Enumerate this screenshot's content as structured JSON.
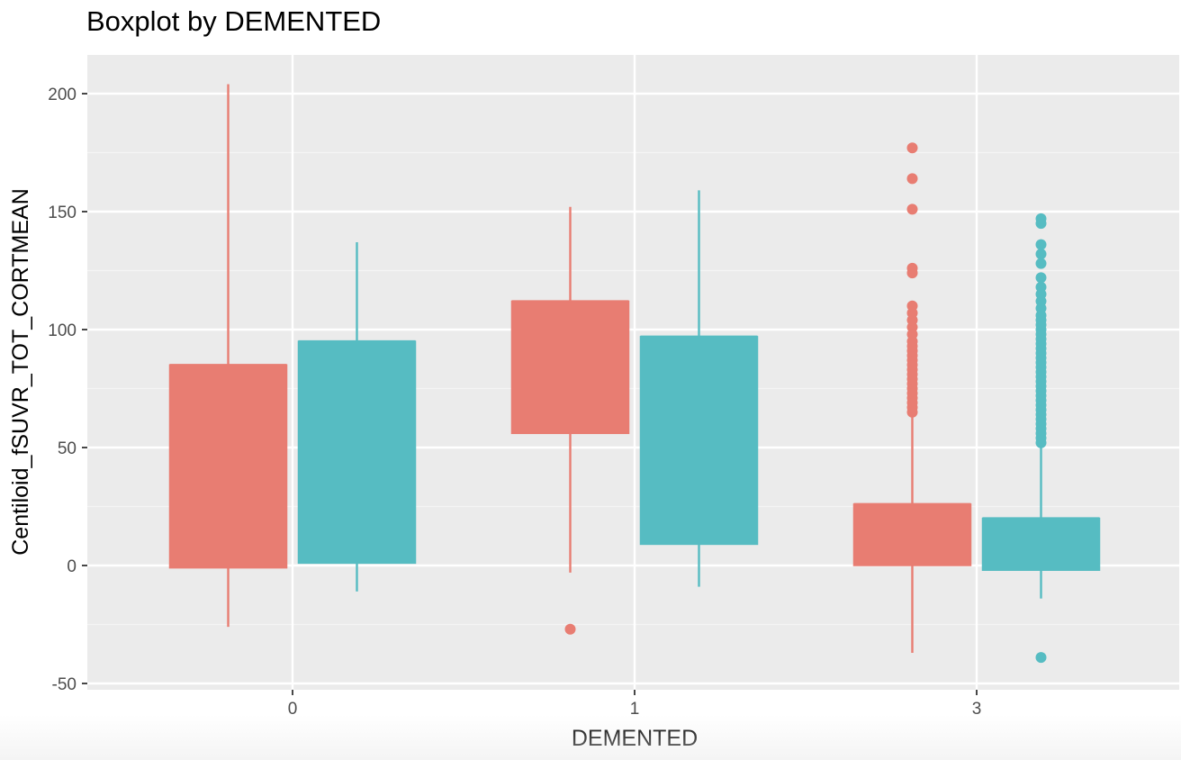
{
  "chart_data": {
    "type": "boxplot",
    "title": "Boxplot by DEMENTED",
    "xlabel": "DEMENTED",
    "ylabel": "Centiloid_fSUVR_TOT_CORTMEAN",
    "categories": [
      "0",
      "1",
      "3"
    ],
    "ylim": [
      -52,
      215
    ],
    "yticks": [
      -50,
      0,
      50,
      100,
      150,
      200
    ],
    "grid": true,
    "legend": "none",
    "colors": [
      "#E87D72",
      "#56BCC2"
    ],
    "groups": [
      {
        "category": "0",
        "boxes": [
          {
            "color_index": 0,
            "whisker_low": -26,
            "q1": -1,
            "median": 85,
            "q3": 85,
            "whisker_high": 204,
            "outliers": []
          },
          {
            "color_index": 1,
            "whisker_low": -11,
            "q1": 1,
            "median": 95,
            "q3": 95,
            "whisker_high": 137,
            "outliers": []
          }
        ]
      },
      {
        "category": "1",
        "boxes": [
          {
            "color_index": 0,
            "whisker_low": -3,
            "q1": 56,
            "median": 112,
            "q3": 112,
            "whisker_high": 152,
            "outliers": [
              -27
            ]
          },
          {
            "color_index": 1,
            "whisker_low": -9,
            "q1": 9,
            "median": 97,
            "q3": 97,
            "whisker_high": 159,
            "outliers": []
          }
        ]
      },
      {
        "category": "3",
        "boxes": [
          {
            "color_index": 0,
            "whisker_low": -37,
            "q1": 0,
            "median": 26,
            "q3": 26,
            "whisker_high": 64,
            "outliers": [
              65,
              67,
              69,
              71,
              73,
              75,
              77,
              79,
              81,
              83,
              85,
              87,
              89,
              91,
              93,
              95,
              98,
              101,
              104,
              107,
              110,
              124,
              126,
              151,
              164,
              177
            ]
          },
          {
            "color_index": 1,
            "whisker_low": -14,
            "q1": -2,
            "median": 20,
            "q3": 20,
            "whisker_high": 51,
            "outliers": [
              -39,
              52,
              54,
              56,
              58,
              60,
              62,
              64,
              66,
              68,
              70,
              72,
              74,
              76,
              78,
              80,
              82,
              84,
              86,
              88,
              90,
              92,
              94,
              96,
              98,
              100,
              102,
              104,
              106,
              109,
              112,
              115,
              118,
              122,
              128,
              132,
              136,
              145,
              147
            ]
          }
        ]
      }
    ]
  }
}
